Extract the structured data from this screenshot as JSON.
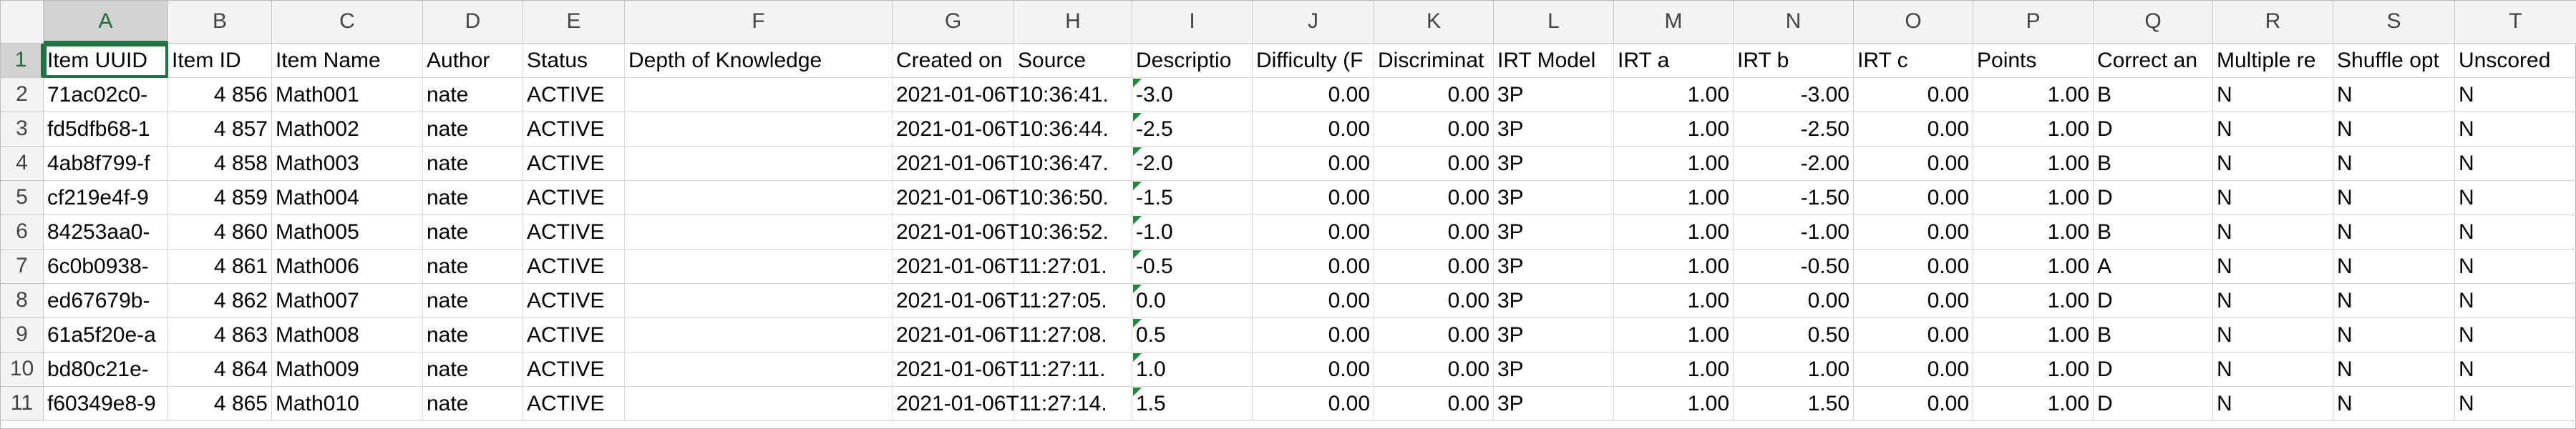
{
  "sheet": {
    "columns": [
      "A",
      "B",
      "C",
      "D",
      "E",
      "F",
      "G",
      "H",
      "I",
      "J",
      "K",
      "L",
      "M",
      "N",
      "O",
      "P",
      "Q",
      "R",
      "S",
      "T"
    ],
    "rows": [
      {
        "number": "1",
        "cells": [
          "Item UUID",
          "Item ID",
          "Item Name",
          "Author",
          "Status",
          "Depth of Knowledge",
          "Created on",
          "Source",
          "Descriptio",
          "Difficulty (F",
          "Discriminat",
          "IRT Model",
          "IRT a",
          "IRT b",
          "IRT c",
          "Points",
          "Correct an",
          "Multiple re",
          "Shuffle opt",
          "Unscored"
        ]
      },
      {
        "number": "2",
        "cells": [
          "71ac02c0-",
          "4 856",
          "Math001",
          "nate",
          "ACTIVE",
          null,
          "2021-01-06T10:36:41.",
          null,
          "-3.0",
          "0.00",
          "0.00",
          "3P",
          "1.00",
          "-3.00",
          "0.00",
          "1.00",
          "B",
          "N",
          "N",
          "N"
        ]
      },
      {
        "number": "3",
        "cells": [
          "fd5dfb68-1",
          "4 857",
          "Math002",
          "nate",
          "ACTIVE",
          null,
          "2021-01-06T10:36:44.",
          null,
          "-2.5",
          "0.00",
          "0.00",
          "3P",
          "1.00",
          "-2.50",
          "0.00",
          "1.00",
          "D",
          "N",
          "N",
          "N"
        ]
      },
      {
        "number": "4",
        "cells": [
          "4ab8f799-f",
          "4 858",
          "Math003",
          "nate",
          "ACTIVE",
          null,
          "2021-01-06T10:36:47.",
          null,
          "-2.0",
          "0.00",
          "0.00",
          "3P",
          "1.00",
          "-2.00",
          "0.00",
          "1.00",
          "B",
          "N",
          "N",
          "N"
        ]
      },
      {
        "number": "5",
        "cells": [
          "cf219e4f-9",
          "4 859",
          "Math004",
          "nate",
          "ACTIVE",
          null,
          "2021-01-06T10:36:50.",
          null,
          "-1.5",
          "0.00",
          "0.00",
          "3P",
          "1.00",
          "-1.50",
          "0.00",
          "1.00",
          "D",
          "N",
          "N",
          "N"
        ]
      },
      {
        "number": "6",
        "cells": [
          "84253aa0-",
          "4 860",
          "Math005",
          "nate",
          "ACTIVE",
          null,
          "2021-01-06T10:36:52.",
          null,
          "-1.0",
          "0.00",
          "0.00",
          "3P",
          "1.00",
          "-1.00",
          "0.00",
          "1.00",
          "B",
          "N",
          "N",
          "N"
        ]
      },
      {
        "number": "7",
        "cells": [
          "6c0b0938-",
          "4 861",
          "Math006",
          "nate",
          "ACTIVE",
          null,
          "2021-01-06T11:27:01.",
          null,
          "-0.5",
          "0.00",
          "0.00",
          "3P",
          "1.00",
          "-0.50",
          "0.00",
          "1.00",
          "A",
          "N",
          "N",
          "N"
        ]
      },
      {
        "number": "8",
        "cells": [
          "ed67679b-",
          "4 862",
          "Math007",
          "nate",
          "ACTIVE",
          null,
          "2021-01-06T11:27:05.",
          null,
          "0.0",
          "0.00",
          "0.00",
          "3P",
          "1.00",
          "0.00",
          "0.00",
          "1.00",
          "D",
          "N",
          "N",
          "N"
        ]
      },
      {
        "number": "9",
        "cells": [
          "61a5f20e-a",
          "4 863",
          "Math008",
          "nate",
          "ACTIVE",
          null,
          "2021-01-06T11:27:08.",
          null,
          "0.5",
          "0.00",
          "0.00",
          "3P",
          "1.00",
          "0.50",
          "0.00",
          "1.00",
          "B",
          "N",
          "N",
          "N"
        ]
      },
      {
        "number": "10",
        "cells": [
          "bd80c21e-",
          "4 864",
          "Math009",
          "nate",
          "ACTIVE",
          null,
          "2021-01-06T11:27:11.",
          null,
          "1.0",
          "0.00",
          "0.00",
          "3P",
          "1.00",
          "1.00",
          "0.00",
          "1.00",
          "D",
          "N",
          "N",
          "N"
        ]
      },
      {
        "number": "11",
        "cells": [
          "f60349e8-9",
          "4 865",
          "Math010",
          "nate",
          "ACTIVE",
          null,
          "2021-01-06T11:27:14.",
          null,
          "1.5",
          "0.00",
          "0.00",
          "3P",
          "1.00",
          "1.50",
          "0.00",
          "1.00",
          "D",
          "N",
          "N",
          "N"
        ]
      }
    ]
  }
}
